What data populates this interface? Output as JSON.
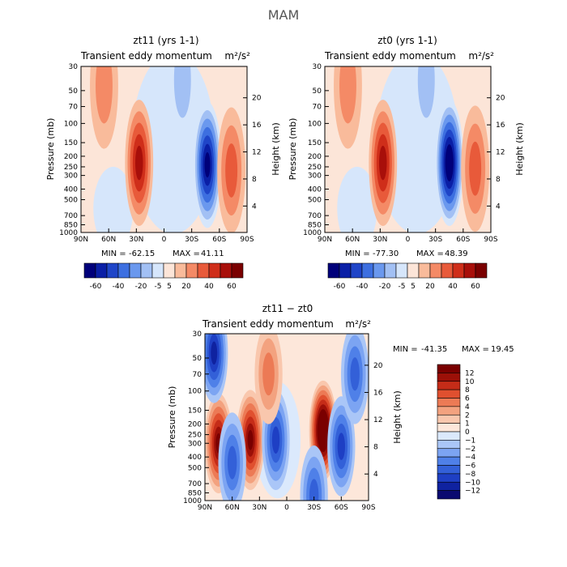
{
  "figure": {
    "suptitle": "MAM",
    "stats_label_min": "MIN =",
    "stats_label_max": "MAX ="
  },
  "chart_data": [
    {
      "type": "heatmap",
      "title": "zt11 (yrs 1-1)",
      "subtitle_left": "Transient eddy momentum",
      "units": "m²/s²",
      "xlabel": "",
      "ylabel": "Pressure (mb)",
      "ylabel_right": "Height (km)",
      "x_ticks": [
        "90N",
        "60N",
        "30N",
        "0",
        "30S",
        "60S",
        "90S"
      ],
      "y_ticks": [
        "30",
        "50",
        "70",
        "100",
        "150",
        "200",
        "250",
        "300",
        "400",
        "500",
        "700",
        "850",
        "1000"
      ],
      "y_ticks_right": [
        "20",
        "16",
        "12",
        "8",
        "4"
      ],
      "min": "-62.15",
      "max": "41.11",
      "colorbar_labels": [
        "-60",
        "-40",
        "-20",
        "-5",
        "5",
        "20",
        "40",
        "60"
      ],
      "features": [
        {
          "lat": 27,
          "p": 230,
          "value": 41
        },
        {
          "lat": -47,
          "p": 240,
          "value": -62
        },
        {
          "lat": -73,
          "p": 270,
          "value": 25
        },
        {
          "lat": 65,
          "p": 45,
          "value": 10
        },
        {
          "lat": -20,
          "p": 40,
          "value": -12
        }
      ]
    },
    {
      "type": "heatmap",
      "title": "zt0 (yrs 1-1)",
      "subtitle_left": "Transient eddy momentum",
      "units": "m²/s²",
      "xlabel": "",
      "ylabel": "Pressure (mb)",
      "ylabel_right": "Height (km)",
      "x_ticks": [
        "90N",
        "60N",
        "30N",
        "0",
        "30S",
        "60S",
        "90S"
      ],
      "y_ticks": [
        "30",
        "50",
        "70",
        "100",
        "150",
        "200",
        "250",
        "300",
        "400",
        "500",
        "700",
        "850",
        "1000"
      ],
      "y_ticks_right": [
        "20",
        "16",
        "12",
        "8",
        "4"
      ],
      "min": "-77.30",
      "max": "48.39",
      "colorbar_labels": [
        "-60",
        "-40",
        "-20",
        "-5",
        "5",
        "20",
        "40",
        "60"
      ],
      "features": [
        {
          "lat": 27,
          "p": 230,
          "value": 48
        },
        {
          "lat": -45,
          "p": 230,
          "value": -77
        },
        {
          "lat": -73,
          "p": 260,
          "value": 25
        },
        {
          "lat": 65,
          "p": 45,
          "value": 10
        },
        {
          "lat": -20,
          "p": 40,
          "value": -12
        }
      ]
    },
    {
      "type": "heatmap",
      "title": "zt11 − zt0",
      "subtitle_left": "Transient eddy momentum",
      "units": "m²/s²",
      "xlabel": "",
      "ylabel": "Pressure (mb)",
      "ylabel_right": "Height (km)",
      "x_ticks": [
        "90N",
        "60N",
        "30N",
        "0",
        "30S",
        "60S",
        "90S"
      ],
      "y_ticks": [
        "30",
        "50",
        "70",
        "100",
        "150",
        "200",
        "250",
        "300",
        "400",
        "500",
        "700",
        "850",
        "1000"
      ],
      "y_ticks_right": [
        "20",
        "16",
        "12",
        "8",
        "4"
      ],
      "min": "-41.35",
      "max": "19.45",
      "colorbar_labels": [
        "12",
        "10",
        "8",
        "6",
        "4",
        "2",
        "1",
        "0",
        "−1",
        "−2",
        "−4",
        "−6",
        "−8",
        "−10",
        "−12"
      ],
      "features": [
        {
          "lat": -40,
          "p": 230,
          "value": 19
        },
        {
          "lat": 40,
          "p": 280,
          "value": 12
        },
        {
          "lat": 75,
          "p": 300,
          "value": 12
        },
        {
          "lat": 12,
          "p": 280,
          "value": -8
        },
        {
          "lat": 60,
          "p": 450,
          "value": -6
        },
        {
          "lat": -60,
          "p": 320,
          "value": -8
        },
        {
          "lat": 80,
          "p": 45,
          "value": -10
        },
        {
          "lat": -75,
          "p": 70,
          "value": -6
        },
        {
          "lat": 20,
          "p": 70,
          "value": 4
        },
        {
          "lat": -30,
          "p": 900,
          "value": -6
        }
      ]
    }
  ],
  "colors": {
    "diverging_12": [
      "#00007a",
      "#0a1fa6",
      "#1f45c8",
      "#3d6fe0",
      "#6a98ee",
      "#a2c0f4",
      "#d6e6fb",
      "#fce5d8",
      "#f9bb9b",
      "#f48a66",
      "#e85a3a",
      "#cf2e1a",
      "#a80f0a",
      "#7a0000"
    ],
    "diverging_diff": [
      "#0a0a70",
      "#0f22a0",
      "#1e3fc4",
      "#3360d8",
      "#4f80e8",
      "#7ca4f2",
      "#aac6f7",
      "#dbe9fc",
      "#fde7da",
      "#f9c7ad",
      "#f3a27f",
      "#ec7a55",
      "#e0502f",
      "#c52c18",
      "#9c1008",
      "#7a0000"
    ]
  }
}
